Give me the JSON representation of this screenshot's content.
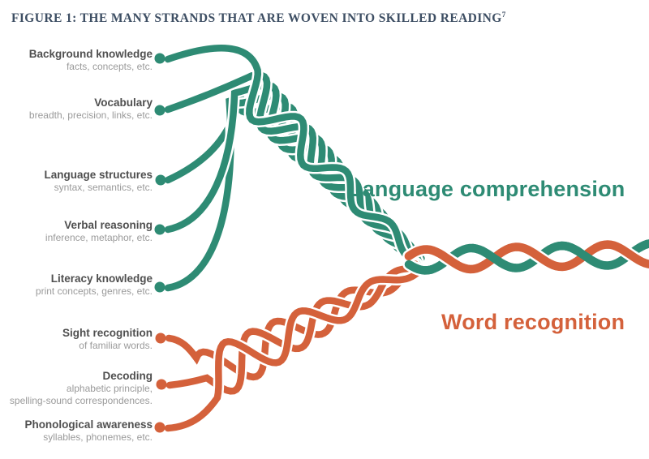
{
  "figure_title": "FIGURE 1: THE MANY STRANDS THAT ARE WOVEN INTO SKILLED READING",
  "figure_title_footnote": "7",
  "colors": {
    "teal": "#2E8B74",
    "orange": "#D4613B",
    "title": "#3D4E63",
    "label": "#4F4F4F",
    "sublabel": "#9A9A9A"
  },
  "upper_group_label": "Language comprehension",
  "lower_group_label": "Word recognition",
  "upper_strands": [
    {
      "title": "Background knowledge",
      "subtitle": "facts, concepts, etc."
    },
    {
      "title": "Vocabulary",
      "subtitle": "breadth, precision, links, etc."
    },
    {
      "title": "Language structures",
      "subtitle": "syntax, semantics, etc."
    },
    {
      "title": "Verbal reasoning",
      "subtitle": "inference, metaphor, etc."
    },
    {
      "title": "Literacy knowledge",
      "subtitle": "print concepts, genres, etc."
    }
  ],
  "lower_strands": [
    {
      "title": "Sight recognition",
      "subtitle": "of familiar words."
    },
    {
      "title": "Decoding",
      "subtitle": "alphabetic principle,\nspelling-sound correspondences."
    },
    {
      "title": "Phonological awareness",
      "subtitle": "syllables, phonemes, etc."
    }
  ]
}
